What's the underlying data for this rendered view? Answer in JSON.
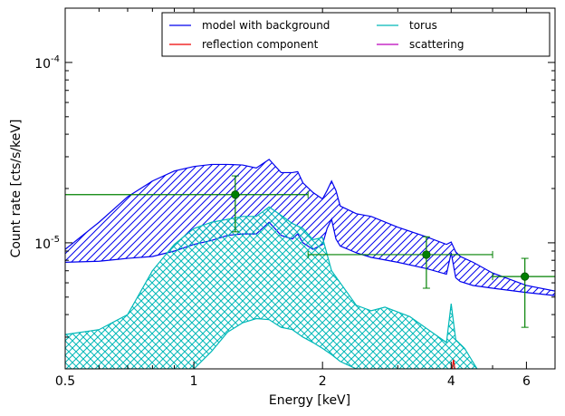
{
  "chart_data": {
    "type": "line",
    "xlabel": "Energy [keV]",
    "ylabel": "Count rate [cts/s/keV]",
    "x_scale": "log",
    "y_scale": "log",
    "xlim": [
      0.5,
      7.0
    ],
    "ylim": [
      2e-06,
      0.0002
    ],
    "x_ticks": [
      {
        "value": 0.5,
        "label": "0.5"
      },
      {
        "value": 1,
        "label": "1"
      },
      {
        "value": 2,
        "label": "2"
      },
      {
        "value": 4,
        "label": "4"
      },
      {
        "value": 6,
        "label": "6"
      }
    ],
    "y_ticks": [
      {
        "value": 1e-05,
        "base": "10",
        "exp": "-5"
      },
      {
        "value": 0.0001,
        "base": "10",
        "exp": "-4"
      }
    ],
    "legend_position": "top-right",
    "series": [
      {
        "name": "model with background",
        "color": "#0000ee",
        "hatch": "diagonal",
        "x": [
          0.5,
          0.6,
          0.7,
          0.8,
          0.9,
          1.0,
          1.1,
          1.2,
          1.3,
          1.4,
          1.5,
          1.6,
          1.7,
          1.75,
          1.8,
          1.9,
          2.0,
          2.05,
          2.1,
          2.15,
          2.2,
          2.4,
          2.6,
          3.0,
          3.5,
          3.9,
          4.0,
          4.1,
          4.2,
          4.5,
          5.0,
          6.0,
          7.0
        ],
        "upper": [
          9.2e-06,
          1.3e-05,
          1.8e-05,
          2.2e-05,
          2.5e-05,
          2.65e-05,
          2.72e-05,
          2.72e-05,
          2.7e-05,
          2.6e-05,
          2.9e-05,
          2.45e-05,
          2.45e-05,
          2.48e-05,
          2.15e-05,
          1.9e-05,
          1.75e-05,
          1.95e-05,
          2.2e-05,
          1.95e-05,
          1.6e-05,
          1.45e-05,
          1.4e-05,
          1.22e-05,
          1.08e-05,
          9.8e-06,
          1.01e-05,
          8.9e-06,
          8.4e-06,
          7.8e-06,
          6.8e-06,
          5.8e-06,
          5.4e-06
        ],
        "lower": [
          7.8e-06,
          7.9e-06,
          8.2e-06,
          8.4e-06,
          9e-06,
          9.8e-06,
          1.03e-05,
          1.1e-05,
          1.12e-05,
          1.12e-05,
          1.3e-05,
          1.1e-05,
          1.05e-05,
          1.12e-05,
          1e-05,
          9.2e-06,
          9.8e-06,
          1.2e-05,
          1.35e-05,
          1.05e-05,
          9.6e-06,
          8.8e-06,
          8.3e-06,
          7.8e-06,
          7.2e-06,
          6.7e-06,
          8.8e-06,
          6.4e-06,
          6.1e-06,
          5.8e-06,
          5.6e-06,
          5.3e-06,
          5.1e-06
        ]
      },
      {
        "name": "torus",
        "color": "#00b8b8",
        "hatch": "cross",
        "x": [
          0.5,
          0.6,
          0.7,
          0.8,
          0.9,
          1.0,
          1.1,
          1.2,
          1.3,
          1.4,
          1.5,
          1.6,
          1.7,
          1.8,
          1.9,
          2.0,
          2.1,
          2.2,
          2.4,
          2.6,
          2.8,
          3.2,
          3.6,
          3.9,
          4.0,
          4.1,
          4.3,
          4.6
        ],
        "upper": [
          3.1e-06,
          3.3e-06,
          4e-06,
          7e-06,
          9.8e-06,
          1.2e-05,
          1.3e-05,
          1.35e-05,
          1.4e-05,
          1.4e-05,
          1.58e-05,
          1.42e-05,
          1.28e-05,
          1.2e-05,
          1.04e-05,
          1.07e-05,
          7e-06,
          6e-06,
          4.5e-06,
          4.2e-06,
          4.4e-06,
          3.9e-06,
          3.2e-06,
          2.8e-06,
          4.6e-06,
          2.9e-06,
          2.6e-06,
          2e-06
        ],
        "lower": [
          2e-06,
          2e-06,
          2e-06,
          2e-06,
          2e-06,
          2e-06,
          2.5e-06,
          3.2e-06,
          3.6e-06,
          3.8e-06,
          3.75e-06,
          3.4e-06,
          3.3e-06,
          3e-06,
          2.8e-06,
          2.6e-06,
          2.4e-06,
          2.2e-06,
          2e-06,
          2e-06,
          2e-06,
          2e-06,
          2e-06,
          2e-06,
          2e-06,
          2e-06,
          2e-06,
          2e-06
        ]
      },
      {
        "name": "reflection component",
        "color": "#ee0000",
        "hatch": "none",
        "x": [
          4.02,
          4.05,
          4.08
        ],
        "upper": [
          2e-06,
          2.25e-06,
          2e-06
        ],
        "lower": [
          2e-06,
          2e-06,
          2e-06
        ]
      },
      {
        "name": "scattering",
        "color": "#bb00bb",
        "hatch": "none",
        "x": [],
        "upper": [],
        "lower": []
      }
    ],
    "data_points": {
      "color": "#008000",
      "points": [
        {
          "x": 1.25,
          "y": 1.85e-05,
          "xerr": [
            0.5,
            1.85
          ],
          "yerr": [
            1.15e-05,
            2.35e-05
          ]
        },
        {
          "x": 3.5,
          "y": 8.6e-06,
          "xerr": [
            1.85,
            5.0
          ],
          "yerr": [
            5.6e-06,
            1.08e-05
          ]
        },
        {
          "x": 5.95,
          "y": 6.5e-06,
          "xerr": [
            5.0,
            7.0
          ],
          "yerr": [
            3.4e-06,
            8.2e-06
          ]
        }
      ]
    }
  }
}
